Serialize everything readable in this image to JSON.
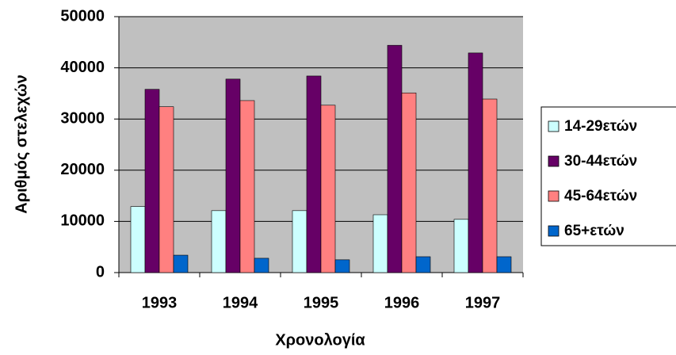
{
  "chart_data": {
    "type": "bar",
    "x_label": "Χρονολογία",
    "y_label": "Αριθμός στελεχών",
    "categories": [
      "1993",
      "1994",
      "1995",
      "1996",
      "1997"
    ],
    "series": [
      {
        "name": "14-29ετών",
        "color": "#ccffff",
        "values": [
          12900,
          12100,
          12100,
          11300,
          10400
        ]
      },
      {
        "name": "30-44ετών",
        "color": "#660066",
        "values": [
          35800,
          37800,
          38400,
          44400,
          42900
        ]
      },
      {
        "name": "45-64ετών",
        "color": "#ff8080",
        "values": [
          32400,
          33600,
          32700,
          35100,
          33900
        ]
      },
      {
        "name": "65+ετών",
        "color": "#0066cc",
        "values": [
          3400,
          2800,
          2500,
          3100,
          3100
        ]
      }
    ],
    "ylim": [
      0,
      50000
    ],
    "yticks": [
      0,
      10000,
      20000,
      30000,
      40000,
      50000
    ],
    "grid": true,
    "legend": "right"
  }
}
